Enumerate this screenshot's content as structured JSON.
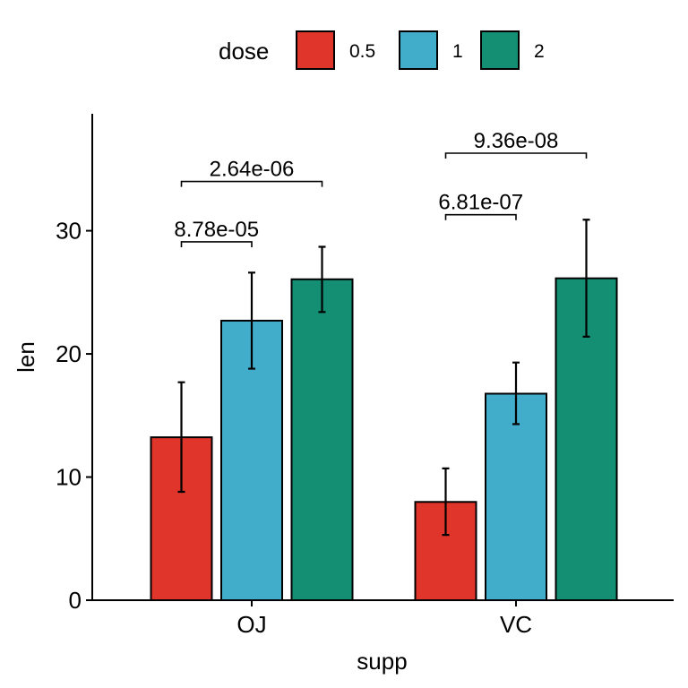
{
  "chart_data": {
    "type": "bar",
    "xlabel": "supp",
    "ylabel": "len",
    "categories": [
      "OJ",
      "VC"
    ],
    "ylim": [
      0,
      39.5
    ],
    "yticks": [
      0,
      10,
      20,
      30
    ],
    "legend": {
      "title": "dose",
      "position": "top"
    },
    "series": [
      {
        "name": "0.5",
        "color": "#E0352B",
        "values": [
          13.23,
          7.98
        ],
        "err_low": [
          8.8,
          5.3
        ],
        "err_high": [
          17.7,
          10.7
        ]
      },
      {
        "name": "1",
        "color": "#42ACCB",
        "values": [
          22.7,
          16.77
        ],
        "err_low": [
          18.8,
          14.3
        ],
        "err_high": [
          26.6,
          19.3
        ]
      },
      {
        "name": "2",
        "color": "#148F74",
        "values": [
          26.06,
          26.14
        ],
        "err_low": [
          23.4,
          21.4
        ],
        "err_high": [
          28.7,
          30.9
        ]
      }
    ],
    "comparisons": [
      {
        "category": "OJ",
        "from": "0.5",
        "to": "1",
        "label": "8.78e-05",
        "y": 29.1
      },
      {
        "category": "OJ",
        "from": "0.5",
        "to": "2",
        "label": "2.64e-06",
        "y": 34.0
      },
      {
        "category": "VC",
        "from": "0.5",
        "to": "1",
        "label": "6.81e-07",
        "y": 31.3
      },
      {
        "category": "VC",
        "from": "0.5",
        "to": "2",
        "label": "9.36e-08",
        "y": 36.3
      }
    ]
  }
}
